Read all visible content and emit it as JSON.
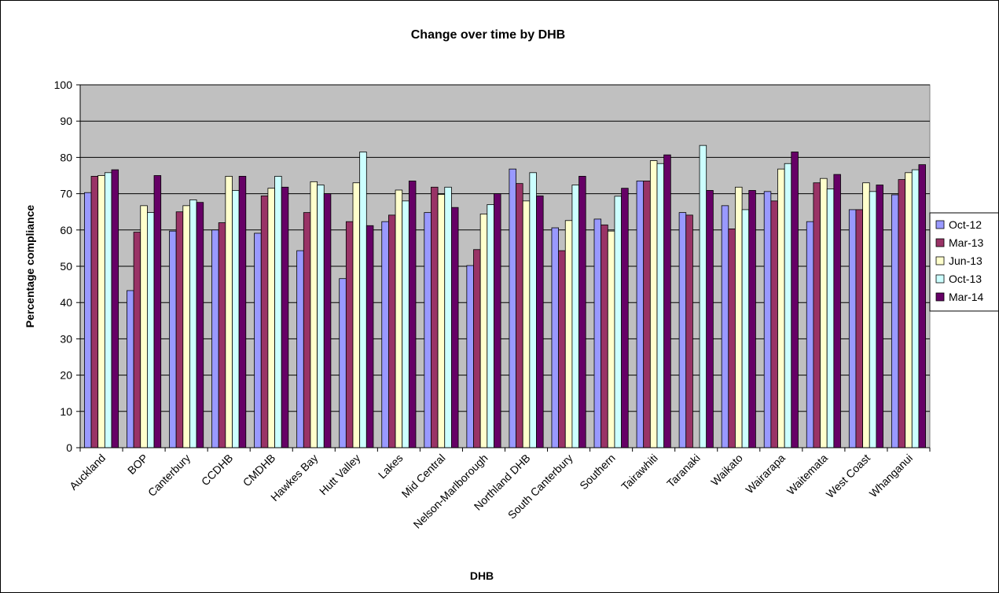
{
  "chart_data": {
    "type": "bar",
    "title": "Change over time by DHB",
    "xlabel": "DHB",
    "ylabel": "Percentage compliance",
    "ylim": [
      0,
      100
    ],
    "yticks": [
      "0",
      "10",
      "20",
      "30",
      "40",
      "50",
      "60",
      "70",
      "80",
      "90",
      "100"
    ],
    "grid": true,
    "legend_position": "right",
    "plot_background": "#c0c0c0",
    "categories": [
      "Auckland",
      "BOP",
      "Canterbury",
      "CCDHB",
      "CMDHB",
      "Hawkes Bay",
      "Hutt Valley",
      "Lakes",
      "Mid Central",
      "Nelson-Marlborough",
      "Northland DHB",
      "South Canterbury",
      "Southern",
      "Tairawhiti",
      "Taranaki",
      "Waikato",
      "Wairarapa",
      "Waitemata",
      "West Coast",
      "Whanganui"
    ],
    "series": [
      {
        "name": "Oct-12",
        "color": "#9999ff",
        "values": [
          70.3,
          43.3,
          59.7,
          60.0,
          59.1,
          54.3,
          46.6,
          62.3,
          64.8,
          50.2,
          76.8,
          60.6,
          63.0,
          73.5,
          64.8,
          66.7,
          70.6,
          62.3,
          65.6,
          69.7
        ]
      },
      {
        "name": "Mar-13",
        "color": "#993366",
        "values": [
          74.8,
          59.4,
          65.0,
          62.0,
          69.4,
          64.8,
          62.3,
          64.1,
          71.8,
          54.6,
          72.8,
          54.3,
          61.4,
          73.5,
          64.1,
          60.3,
          68.0,
          73.0,
          65.6,
          73.9
        ]
      },
      {
        "name": "Jun-13",
        "color": "#ffffcc",
        "values": [
          75.0,
          66.7,
          66.7,
          74.8,
          71.5,
          73.3,
          73.0,
          71.0,
          69.8,
          64.4,
          68.0,
          62.6,
          59.7,
          79.1,
          null,
          71.8,
          76.8,
          74.2,
          73.0,
          75.8
        ]
      },
      {
        "name": "Oct-13",
        "color": "#ccffff",
        "values": [
          75.8,
          64.8,
          68.3,
          70.9,
          74.8,
          72.4,
          81.5,
          68.0,
          71.8,
          67.0,
          75.8,
          72.4,
          69.3,
          78.3,
          83.3,
          65.6,
          78.3,
          71.3,
          70.6,
          76.6
        ]
      },
      {
        "name": "Mar-14",
        "color": "#660066",
        "values": [
          76.6,
          75.0,
          67.6,
          74.8,
          71.8,
          70.0,
          61.2,
          73.5,
          66.2,
          70.0,
          69.4,
          74.8,
          71.5,
          80.7,
          70.9,
          70.9,
          81.5,
          75.3,
          72.4,
          78.0
        ]
      }
    ]
  }
}
